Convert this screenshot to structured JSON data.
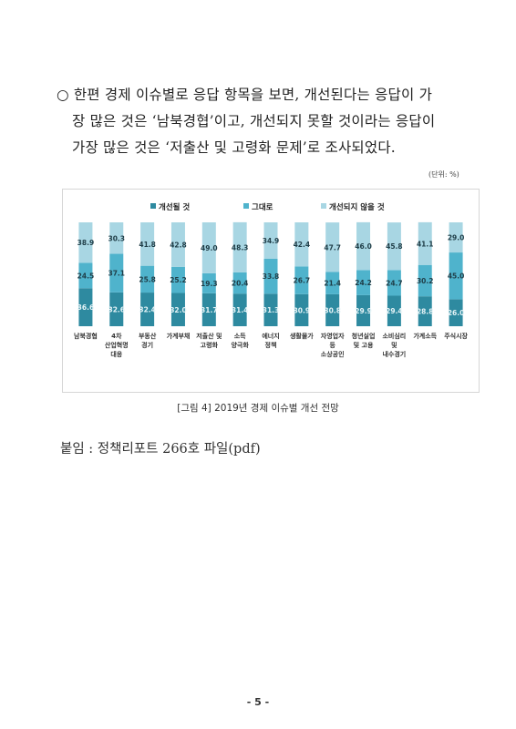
{
  "paragraph": {
    "line1": "○ 한편 경제 이슈별로 응답 항목을 보면, 개선된다는 응답이 가",
    "line2": "장 많은 것은 ‘남북경협’이고, 개선되지 못할 것이라는 응답이",
    "line3": "가장 많은 것은 ‘저출산 및 고령화 문제’로 조사되었다."
  },
  "unit_label": "(단위: %)",
  "caption": "[그림 4] 2019년 경제 이슈별 개선 전망",
  "attachment": "붙임 : 정책리포트 266호 파일(pdf)",
  "page_number": "- 5 -",
  "colors": {
    "improve": "#2e8aa0",
    "same": "#4fb3cc",
    "not_improve": "#a8d6e3"
  },
  "chart_data": {
    "type": "bar",
    "stacked": true,
    "orientation": "vertical",
    "legend_position": "top",
    "grid": false,
    "categories": [
      [
        "남북경협"
      ],
      [
        "4차",
        "산업혁명",
        "대응"
      ],
      [
        "부동산",
        "경기"
      ],
      [
        "가계부채"
      ],
      [
        "저출산 및",
        "고령화"
      ],
      [
        "소득",
        "양극화"
      ],
      [
        "에너지",
        "정책"
      ],
      [
        "생활물가"
      ],
      [
        "자영업자",
        "등",
        "소상공인"
      ],
      [
        "청년실업",
        "및 고용"
      ],
      [
        "소비심리",
        "및",
        "내수경기"
      ],
      [
        "가계소득"
      ],
      [
        "주식시장"
      ]
    ],
    "series": [
      {
        "name": "개선될 것",
        "values": [
          36.6,
          32.6,
          32.4,
          32.0,
          31.7,
          31.4,
          31.3,
          30.9,
          30.8,
          29.9,
          29.4,
          28.8,
          26.0
        ]
      },
      {
        "name": "그대로",
        "values": [
          24.5,
          37.1,
          25.8,
          25.2,
          19.3,
          20.4,
          33.8,
          26.7,
          21.4,
          24.2,
          24.7,
          30.2,
          45.0
        ]
      },
      {
        "name": "개선되지 않을 것",
        "values": [
          38.9,
          30.3,
          41.8,
          42.8,
          49.0,
          48.3,
          34.9,
          42.4,
          47.7,
          46.0,
          45.8,
          41.1,
          29.0
        ]
      }
    ],
    "ylim": [
      0,
      100
    ]
  }
}
